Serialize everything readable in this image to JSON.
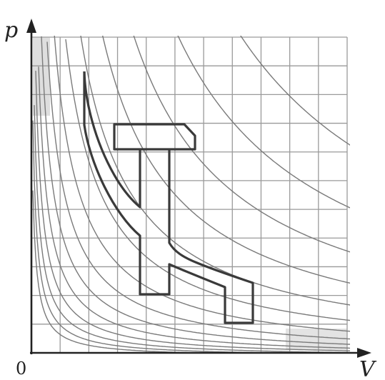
{
  "axes": {
    "y_label": "p",
    "x_label": "V",
    "origin_label": "0"
  },
  "grid": {
    "columns": 11,
    "rows": 11,
    "shown": true
  },
  "isotherms": {
    "count": 14,
    "shape": "hyperbola pV = const"
  },
  "colors": {
    "ink": "#222222",
    "grid": "#9a9a9a",
    "curve": "#7a7a7a",
    "shape": "#3a3a3a",
    "shade": "#d0d0d0"
  }
}
